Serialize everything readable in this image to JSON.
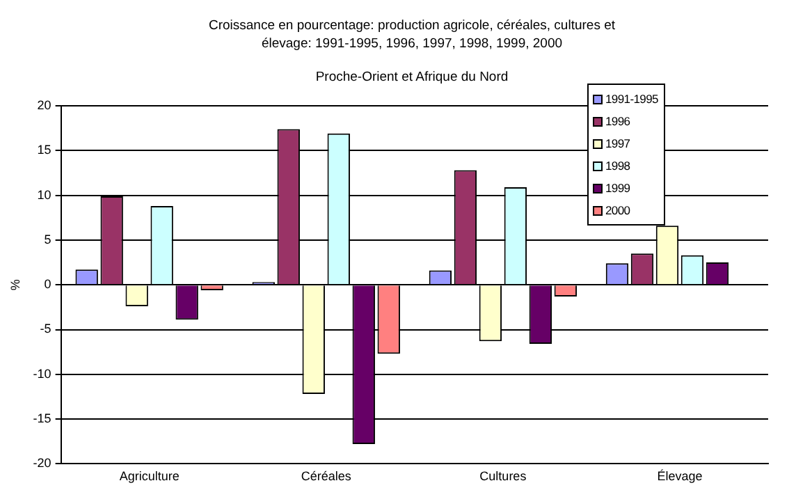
{
  "chart_data": {
    "type": "bar",
    "title": "Croissance en pourcentage: production agricole, céréales, cultures et élevage: 1991-1995, 1996, 1997, 1998, 1999, 2000",
    "subtitle": "Proche-Orient et Afrique du Nord",
    "ylabel": "%",
    "categories": [
      "Agriculture",
      "Céréales",
      "Cultures",
      "Élevage"
    ],
    "series": [
      {
        "name": "1991-1995",
        "color": "#9999ff",
        "values": [
          1.7,
          0.3,
          1.6,
          2.4
        ]
      },
      {
        "name": "1996",
        "color": "#993366",
        "values": [
          9.9,
          17.4,
          12.8,
          3.5
        ]
      },
      {
        "name": "1997",
        "color": "#ffffcc",
        "values": [
          -2.4,
          -12.2,
          -6.3,
          6.6
        ]
      },
      {
        "name": "1998",
        "color": "#ccffff",
        "values": [
          8.8,
          16.9,
          10.9,
          3.3
        ]
      },
      {
        "name": "1999",
        "color": "#660066",
        "values": [
          -3.9,
          -17.8,
          -6.6,
          2.5
        ]
      },
      {
        "name": "2000",
        "color": "#ff8080",
        "values": [
          -0.6,
          -7.7,
          -1.3,
          null
        ]
      }
    ],
    "ylim": [
      -20,
      20
    ],
    "yticks": [
      -20,
      -15,
      -10,
      -5,
      0,
      5,
      10,
      15,
      20
    ],
    "grid": "y",
    "legend": "top right"
  }
}
